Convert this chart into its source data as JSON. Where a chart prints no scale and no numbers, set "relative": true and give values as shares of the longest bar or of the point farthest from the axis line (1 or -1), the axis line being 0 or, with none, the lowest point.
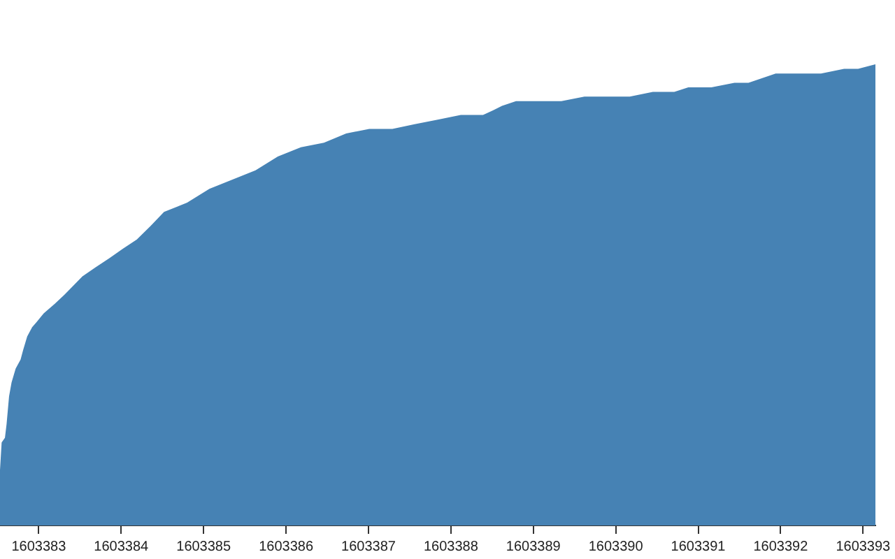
{
  "chart_data": {
    "type": "area",
    "relative": true,
    "color": "#4682b4",
    "x": [
      1603382.53,
      1603382.55,
      1603382.59,
      1603382.61,
      1603382.64,
      1603382.67,
      1603382.72,
      1603382.78,
      1603382.81,
      1603382.86,
      1603382.92,
      1603382.97,
      1603383.06,
      1603383.19,
      1603383.31,
      1603383.42,
      1603383.53,
      1603383.69,
      1603383.86,
      1603384.02,
      1603384.19,
      1603384.36,
      1603384.52,
      1603384.8,
      1603385.07,
      1603385.35,
      1603385.63,
      1603385.9,
      1603386.18,
      1603386.46,
      1603386.73,
      1603387.01,
      1603387.29,
      1603387.56,
      1603387.84,
      1603388.12,
      1603388.39,
      1603388.51,
      1603388.62,
      1603388.79,
      1603389.05,
      1603389.34,
      1603389.62,
      1603389.88,
      1603390.17,
      1603390.45,
      1603390.71,
      1603390.88,
      1603391.16,
      1603391.44,
      1603391.61,
      1603391.94,
      1603392.27,
      1603392.49,
      1603392.77,
      1603392.94,
      1603393.15
    ],
    "values": [
      0.12,
      0.18,
      0.19,
      0.22,
      0.28,
      0.31,
      0.34,
      0.36,
      0.38,
      0.41,
      0.43,
      0.44,
      0.46,
      0.48,
      0.5,
      0.52,
      0.54,
      0.56,
      0.58,
      0.6,
      0.62,
      0.65,
      0.68,
      0.7,
      0.73,
      0.75,
      0.77,
      0.8,
      0.82,
      0.83,
      0.85,
      0.86,
      0.86,
      0.87,
      0.88,
      0.89,
      0.89,
      0.9,
      0.91,
      0.92,
      0.92,
      0.92,
      0.93,
      0.93,
      0.93,
      0.94,
      0.94,
      0.95,
      0.95,
      0.96,
      0.96,
      0.98,
      0.98,
      0.98,
      0.99,
      0.99,
      1
    ],
    "xlim": [
      1603382.53,
      1603393.15
    ],
    "xticks": [
      1603383,
      1603384,
      1603385,
      1603386,
      1603387,
      1603388,
      1603389,
      1603390,
      1603391,
      1603392,
      1603393
    ]
  }
}
